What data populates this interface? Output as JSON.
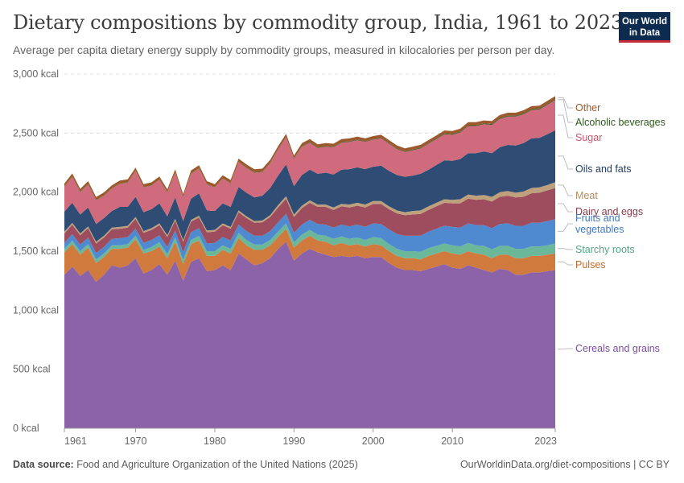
{
  "header": {
    "title": "Dietary compositions by commodity group, India, 1961 to 2023",
    "subtitle": "Average per capita dietary energy supply by commodity groups, measured in kilocalories per person per day.",
    "logo_line1": "Our World",
    "logo_line2": "in Data"
  },
  "footer": {
    "source_label": "Data source:",
    "source_text": "Food and Agriculture Organization of the United Nations (2025)",
    "url_text": "OurWorldinData.org/diet-compositions | CC BY"
  },
  "chart_data": {
    "type": "area",
    "stacked": true,
    "x_start": 1961,
    "x_end": 2023,
    "xticks": [
      1961,
      1970,
      1980,
      1990,
      2000,
      2010,
      2023
    ],
    "yticks": [
      0,
      500,
      1000,
      1500,
      2000,
      2500,
      3000
    ],
    "ytick_labels": [
      "0 kcal",
      "500 kcal",
      "1,000 kcal",
      "1,500 kcal",
      "2,000 kcal",
      "2,500 kcal",
      "3,000 kcal"
    ],
    "ylim": [
      0,
      3000
    ],
    "grid": "horizontal dashed",
    "legend_placement": "right, inline labels",
    "series": [
      {
        "name": "Cereals and grains",
        "color": "#8c63a8",
        "values": [
          1300,
          1370,
          1290,
          1340,
          1240,
          1300,
          1380,
          1360,
          1380,
          1440,
          1310,
          1340,
          1390,
          1300,
          1420,
          1250,
          1410,
          1440,
          1330,
          1340,
          1380,
          1340,
          1480,
          1430,
          1380,
          1400,
          1440,
          1520,
          1580,
          1420,
          1480,
          1520,
          1490,
          1470,
          1450,
          1460,
          1450,
          1460,
          1440,
          1450,
          1450,
          1400,
          1360,
          1340,
          1340,
          1330,
          1350,
          1370,
          1390,
          1360,
          1350,
          1380,
          1360,
          1340,
          1320,
          1350,
          1340,
          1300,
          1300,
          1320,
          1320,
          1330,
          1340
        ]
      },
      {
        "name": "Pulses",
        "color": "#d07a3e",
        "values": [
          190,
          190,
          180,
          190,
          160,
          150,
          140,
          160,
          150,
          160,
          170,
          160,
          150,
          140,
          160,
          140,
          150,
          150,
          130,
          120,
          130,
          140,
          130,
          120,
          130,
          110,
          110,
          100,
          110,
          110,
          110,
          110,
          100,
          110,
          100,
          110,
          100,
          100,
          100,
          110,
          100,
          100,
          100,
          100,
          100,
          100,
          110,
          110,
          110,
          120,
          120,
          120,
          120,
          130,
          120,
          120,
          130,
          140,
          140,
          140,
          140,
          140,
          140
        ]
      },
      {
        "name": "Starchy roots",
        "color": "#6bb79a",
        "values": [
          30,
          30,
          30,
          30,
          30,
          30,
          30,
          30,
          30,
          30,
          30,
          35,
          35,
          35,
          35,
          35,
          35,
          40,
          40,
          40,
          40,
          40,
          45,
          45,
          45,
          45,
          45,
          45,
          45,
          45,
          50,
          50,
          50,
          50,
          55,
          55,
          55,
          55,
          55,
          60,
          60,
          60,
          60,
          60,
          60,
          65,
          65,
          65,
          65,
          70,
          70,
          70,
          70,
          75,
          75,
          75,
          75,
          80,
          80,
          80,
          80,
          80,
          85
        ]
      },
      {
        "name": "Fruits and vegetables",
        "color": "#4f8ad1",
        "values": [
          50,
          55,
          55,
          55,
          55,
          55,
          55,
          60,
          60,
          60,
          60,
          60,
          60,
          60,
          60,
          65,
          65,
          65,
          65,
          70,
          70,
          70,
          70,
          75,
          75,
          75,
          75,
          80,
          80,
          80,
          85,
          85,
          90,
          95,
          95,
          100,
          105,
          110,
          110,
          115,
          120,
          125,
          125,
          130,
          130,
          135,
          140,
          145,
          150,
          155,
          160,
          165,
          170,
          175,
          180,
          185,
          190,
          195,
          195,
          200,
          200,
          205,
          205
        ]
      },
      {
        "name": "Dairy and eggs",
        "color": "#9d4d5e",
        "values": [
          80,
          80,
          80,
          80,
          80,
          80,
          80,
          80,
          80,
          85,
          85,
          85,
          85,
          85,
          85,
          90,
          90,
          90,
          95,
          95,
          100,
          100,
          105,
          110,
          110,
          115,
          120,
          125,
          130,
          135,
          140,
          145,
          145,
          150,
          150,
          155,
          160,
          160,
          165,
          165,
          170,
          170,
          175,
          175,
          180,
          185,
          185,
          190,
          195,
          200,
          205,
          210,
          215,
          220,
          225,
          230,
          235,
          240,
          245,
          250,
          255,
          260,
          265
        ]
      },
      {
        "name": "Meat",
        "color": "#bfa07c",
        "values": [
          15,
          15,
          15,
          15,
          15,
          15,
          15,
          15,
          15,
          15,
          15,
          15,
          15,
          15,
          15,
          15,
          15,
          15,
          15,
          15,
          15,
          15,
          15,
          15,
          15,
          15,
          15,
          20,
          20,
          20,
          20,
          20,
          20,
          20,
          20,
          20,
          25,
          25,
          25,
          25,
          25,
          25,
          25,
          25,
          30,
          30,
          30,
          30,
          30,
          30,
          35,
          35,
          35,
          35,
          40,
          40,
          40,
          40,
          45,
          45,
          45,
          45,
          50
        ]
      },
      {
        "name": "Oils and fats",
        "color": "#2f4d74",
        "values": [
          170,
          170,
          160,
          160,
          150,
          150,
          140,
          170,
          160,
          170,
          160,
          160,
          170,
          160,
          180,
          160,
          180,
          190,
          170,
          160,
          170,
          170,
          200,
          200,
          200,
          210,
          230,
          250,
          270,
          240,
          260,
          260,
          260,
          270,
          280,
          290,
          300,
          300,
          300,
          290,
          300,
          300,
          300,
          300,
          300,
          310,
          310,
          320,
          330,
          330,
          340,
          350,
          360,
          370,
          370,
          380,
          390,
          400,
          410,
          420,
          420,
          430,
          440
        ]
      },
      {
        "name": "Sugar",
        "color": "#d06b7d",
        "values": [
          210,
          220,
          190,
          195,
          200,
          190,
          190,
          195,
          205,
          220,
          210,
          200,
          200,
          200,
          210,
          200,
          210,
          210,
          220,
          200,
          210,
          200,
          210,
          210,
          210,
          200,
          210,
          220,
          230,
          230,
          240,
          230,
          220,
          220,
          230,
          230,
          230,
          230,
          230,
          230,
          230,
          230,
          220,
          210,
          215,
          215,
          220,
          220,
          220,
          220,
          225,
          230,
          230,
          230,
          240,
          240,
          240,
          245,
          245,
          240,
          240,
          250,
          255
        ]
      },
      {
        "name": "Alcoholic beverages",
        "color": "#3d5a23",
        "values": [
          3,
          3,
          3,
          3,
          3,
          3,
          3,
          3,
          3,
          3,
          3,
          3,
          3,
          3,
          3,
          3,
          3,
          3,
          3,
          3,
          3,
          3,
          4,
          4,
          4,
          4,
          4,
          4,
          4,
          4,
          4,
          5,
          5,
          5,
          5,
          5,
          5,
          5,
          5,
          5,
          6,
          6,
          6,
          6,
          6,
          6,
          6,
          6,
          7,
          7,
          7,
          7,
          7,
          7,
          7,
          8,
          8,
          8,
          8,
          8,
          8,
          8,
          8
        ]
      },
      {
        "name": "Other",
        "color": "#9c5a2c",
        "values": [
          25,
          25,
          25,
          25,
          25,
          25,
          25,
          25,
          25,
          25,
          25,
          25,
          25,
          25,
          25,
          25,
          25,
          25,
          25,
          25,
          25,
          25,
          25,
          25,
          25,
          25,
          25,
          25,
          25,
          25,
          25,
          25,
          25,
          25,
          25,
          25,
          25,
          25,
          25,
          25,
          25,
          25,
          25,
          25,
          25,
          25,
          25,
          25,
          25,
          25,
          25,
          25,
          25,
          25,
          25,
          25,
          25,
          25,
          25,
          25,
          25,
          25,
          25
        ]
      }
    ]
  }
}
